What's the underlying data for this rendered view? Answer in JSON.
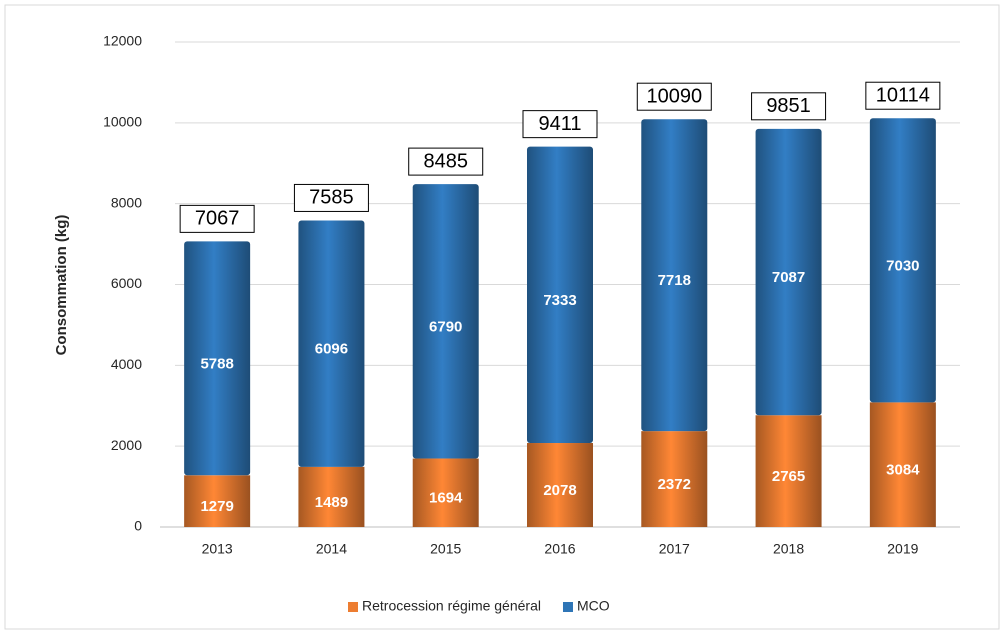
{
  "chart_data": {
    "type": "stacked_bar",
    "y_label": "Consommation (kg)",
    "categories": [
      "2013",
      "2014",
      "2015",
      "2016",
      "2017",
      "2018",
      "2019"
    ],
    "series": [
      {
        "name": "Retrocession régime général",
        "color": "#ed7d31",
        "values": [
          1279,
          1489,
          1694,
          2078,
          2372,
          2765,
          3084
        ]
      },
      {
        "name": "MCO",
        "color": "#2e75b6",
        "values": [
          5788,
          6096,
          6790,
          7333,
          7718,
          7087,
          7030
        ]
      }
    ],
    "totals": [
      7067,
      7585,
      8485,
      9411,
      10090,
      9851,
      10114
    ],
    "ylim": [
      0,
      12000
    ],
    "yticks": [
      0,
      2000,
      4000,
      6000,
      8000,
      10000,
      12000
    ],
    "grid": true,
    "legend": "bottom"
  }
}
